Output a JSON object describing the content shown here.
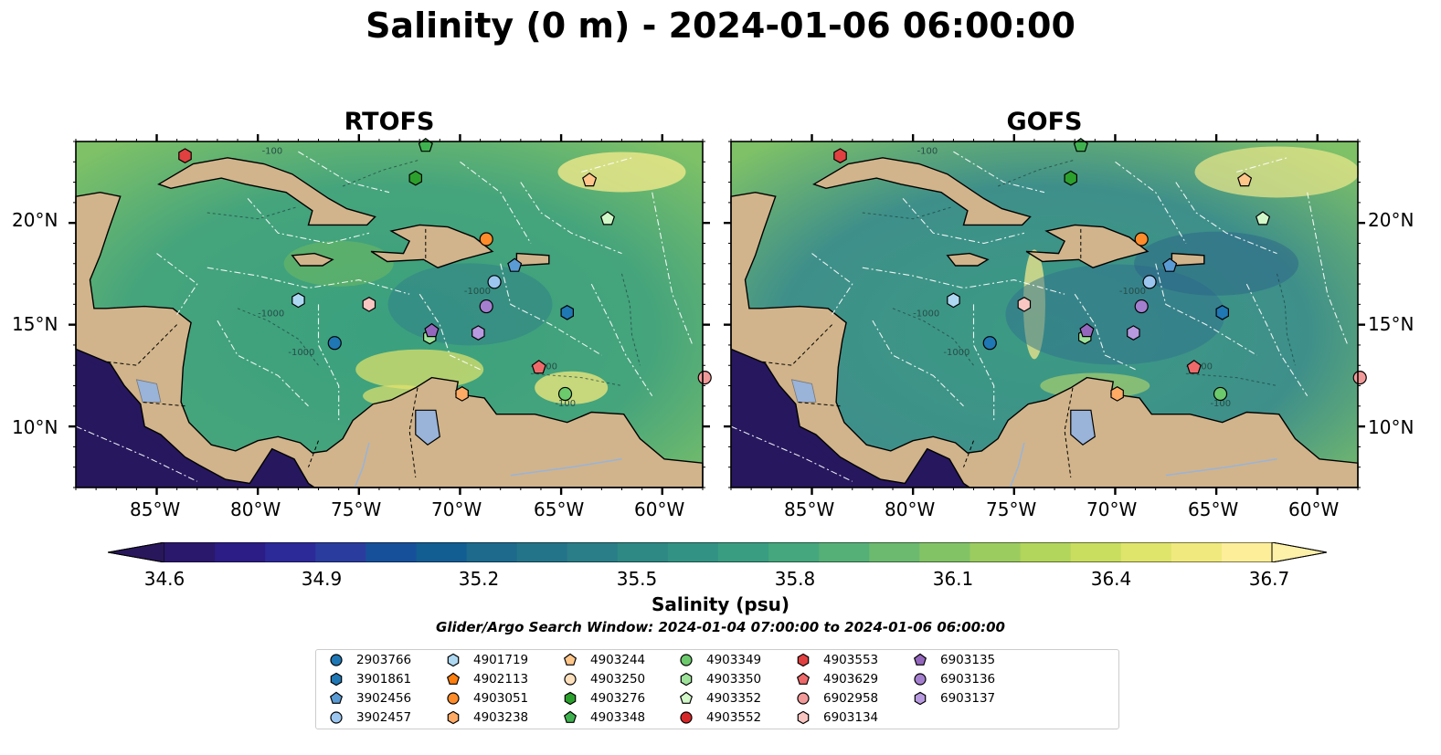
{
  "title": "Salinity (0 m) - 2024-01-06 06:00:00",
  "panels": [
    {
      "id": "rtofs",
      "label": "RTOFS"
    },
    {
      "id": "gofs",
      "label": "GOFS"
    }
  ],
  "lon_ticks": [
    "85°W",
    "80°W",
    "75°W",
    "70°W",
    "65°W",
    "60°W"
  ],
  "lat_ticks": [
    "20°N",
    "15°N",
    "10°N"
  ],
  "contour_labels": [
    "-100",
    "-1000",
    "-2000"
  ],
  "colorbar": {
    "label": "Salinity (psu)",
    "ticks": [
      "34.6",
      "34.9",
      "35.2",
      "35.5",
      "35.8",
      "36.1",
      "36.4",
      "36.7"
    ],
    "min": 34.6,
    "max": 36.7,
    "extend": "both",
    "colormap": "haline"
  },
  "search_window": "Glider/Argo Search Window: 2024-01-04 07:00:00 to 2024-01-06 06:00:00",
  "colors": {
    "land": "#d1b48b",
    "deep_ocean": "#26175e",
    "lakes": "#99b3d9",
    "bathymetry_lines": "#ffffff"
  },
  "legend": [
    {
      "id": "2903766",
      "shape": "circle",
      "color": "#1f77b4"
    },
    {
      "id": "3901861",
      "shape": "hexagon",
      "color": "#1f77b4"
    },
    {
      "id": "3902456",
      "shape": "pentagon",
      "color": "#5b9bd5"
    },
    {
      "id": "3902457",
      "shape": "circle",
      "color": "#9cc6ef"
    },
    {
      "id": "4901719",
      "shape": "hexagon",
      "color": "#aed8f2"
    },
    {
      "id": "4902113",
      "shape": "pentagon",
      "color": "#ff7f0e"
    },
    {
      "id": "4903051",
      "shape": "circle",
      "color": "#ff8c2a"
    },
    {
      "id": "4903238",
      "shape": "hexagon",
      "color": "#ffab66"
    },
    {
      "id": "4903244",
      "shape": "pentagon",
      "color": "#ffc68a"
    },
    {
      "id": "4903250",
      "shape": "circle",
      "color": "#ffe0bc"
    },
    {
      "id": "4903276",
      "shape": "hexagon",
      "color": "#2ca02c"
    },
    {
      "id": "4903348",
      "shape": "pentagon",
      "color": "#3fb24f"
    },
    {
      "id": "4903349",
      "shape": "circle",
      "color": "#6cc96c"
    },
    {
      "id": "4903350",
      "shape": "hexagon",
      "color": "#9ee29a"
    },
    {
      "id": "4903352",
      "shape": "pentagon",
      "color": "#d2f7c8"
    },
    {
      "id": "4903552",
      "shape": "circle",
      "color": "#d62728"
    },
    {
      "id": "4903553",
      "shape": "hexagon",
      "color": "#e04040"
    },
    {
      "id": "4903629",
      "shape": "pentagon",
      "color": "#ee6a6a"
    },
    {
      "id": "6902958",
      "shape": "circle",
      "color": "#f29a9a"
    },
    {
      "id": "6903134",
      "shape": "hexagon",
      "color": "#f9c6c2"
    },
    {
      "id": "6903135",
      "shape": "pentagon",
      "color": "#9467bd"
    },
    {
      "id": "6903136",
      "shape": "circle",
      "color": "#a57fcf"
    },
    {
      "id": "6903137",
      "shape": "hexagon",
      "color": "#b89ae0"
    }
  ],
  "floats": [
    {
      "id": "2903766",
      "lon": -76.2,
      "lat": 14.1
    },
    {
      "id": "3901861",
      "lon": -64.7,
      "lat": 15.6
    },
    {
      "id": "3902456",
      "lon": -67.3,
      "lat": 17.9
    },
    {
      "id": "3902457",
      "lon": -68.3,
      "lat": 17.1
    },
    {
      "id": "4901719",
      "lon": -78.0,
      "lat": 16.2
    },
    {
      "id": "4903051",
      "lon": -68.7,
      "lat": 19.2
    },
    {
      "id": "4903238",
      "lon": -69.9,
      "lat": 11.6
    },
    {
      "id": "4903244",
      "lon": -63.6,
      "lat": 22.1
    },
    {
      "id": "4903276",
      "lon": -72.2,
      "lat": 22.2
    },
    {
      "id": "4903348",
      "lon": -71.7,
      "lat": 23.8
    },
    {
      "id": "4903349",
      "lon": -64.8,
      "lat": 11.6
    },
    {
      "id": "4903350",
      "lon": -71.5,
      "lat": 14.4
    },
    {
      "id": "4903352",
      "lon": -62.7,
      "lat": 20.2
    },
    {
      "id": "4903553",
      "lon": -83.6,
      "lat": 23.3
    },
    {
      "id": "4903629",
      "lon": -66.1,
      "lat": 12.9
    },
    {
      "id": "6902958",
      "lon": -57.9,
      "lat": 12.4
    },
    {
      "id": "6903134",
      "lon": -74.5,
      "lat": 16.0
    },
    {
      "id": "6903135",
      "lon": -71.4,
      "lat": 14.7
    },
    {
      "id": "6903136",
      "lon": -68.7,
      "lat": 15.9
    },
    {
      "id": "6903137",
      "lon": -69.1,
      "lat": 14.6
    }
  ]
}
